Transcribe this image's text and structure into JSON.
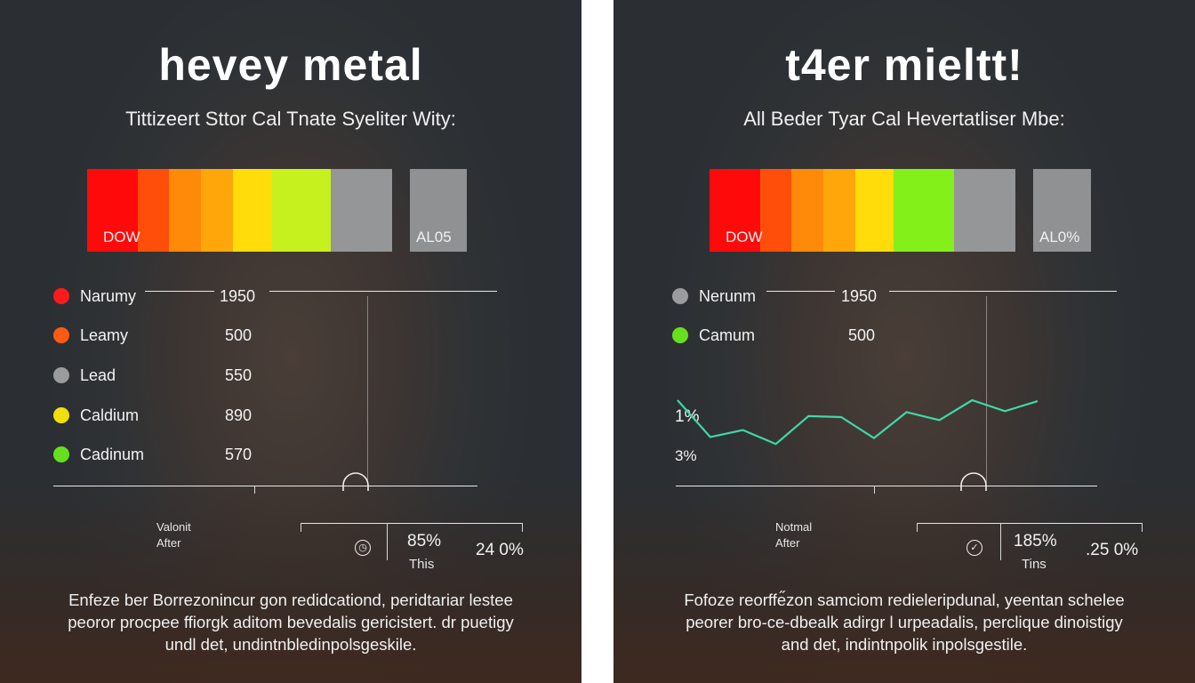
{
  "left": {
    "title": "hevey metal",
    "subtitle": "Tittizeert Sttor Cal Tnate Syeliter Wity:",
    "bar": {
      "label": "DOW",
      "segments": [
        "#ff0a0a",
        "#ff4d0a",
        "#ff8a0a",
        "#ffa60a",
        "#ffdc0a",
        "#c6f01e",
        "#959698"
      ],
      "tail_label": "AL05"
    },
    "legend": [
      {
        "name": "Narumy",
        "value": "1950",
        "color": "#ff1a1a"
      },
      {
        "name": "Leamy",
        "value": "500",
        "color": "#ff5a14"
      },
      {
        "name": "Lead",
        "value": "550",
        "color": "#9a9b9d"
      },
      {
        "name": "Caldium",
        "value": "890",
        "color": "#f2de0a"
      },
      {
        "name": "Cadinum",
        "value": "570",
        "color": "#66e01e"
      }
    ],
    "stats": {
      "label_top": "Valonit",
      "label_bottom": "After",
      "icon": "clock-icon",
      "percent": "85%",
      "percent_caption": "This",
      "side_value": "24 0%"
    },
    "paragraph": [
      "Enfeze ber Borrezonincur gon redidcationd, peridtariar lestee",
      "peoror procpee ffiorgk aditom bevedalis gericistert. dr puetigy",
      "undl det, undintnbledinpolsgeskile."
    ]
  },
  "right": {
    "title": "t4er mieltt!",
    "subtitle": "All Beder Tyar Cal Hevertatliser Mbe:",
    "bar": {
      "label": "DOW",
      "segments": [
        "#ff0a0a",
        "#ff4d0a",
        "#ff8a0a",
        "#ffa60a",
        "#ffdc0a",
        "#84f01a",
        "#959698"
      ],
      "tail_label": "AL0%"
    },
    "legend": [
      {
        "name": "Nerunm",
        "value": "1950",
        "color": "#9a9b9d"
      },
      {
        "name": "Camum",
        "value": "500",
        "color": "#66e01e"
      }
    ],
    "chart": {
      "label_top": "1%",
      "label_bottom": "3%",
      "line_color": "#3fd8a8",
      "points": [
        0.0,
        0.74,
        0.6,
        0.88,
        0.32,
        0.34,
        0.76,
        0.24,
        0.4,
        0.0,
        0.22,
        0.02
      ]
    },
    "stats": {
      "label_top": "Notmal",
      "label_bottom": "After",
      "icon": "check-circle-icon",
      "percent": "185%",
      "percent_caption": "Tins",
      "side_value": ".25 0%"
    },
    "paragraph": [
      "Fofoze reorffe̋zon samciom redieleripdunal, yeentan schelee",
      "peorer bro-ce-dbealk adirgr l urpeadalis, perclique dinoistigy",
      "and det, indintnpolik inpolsgestile."
    ]
  }
}
